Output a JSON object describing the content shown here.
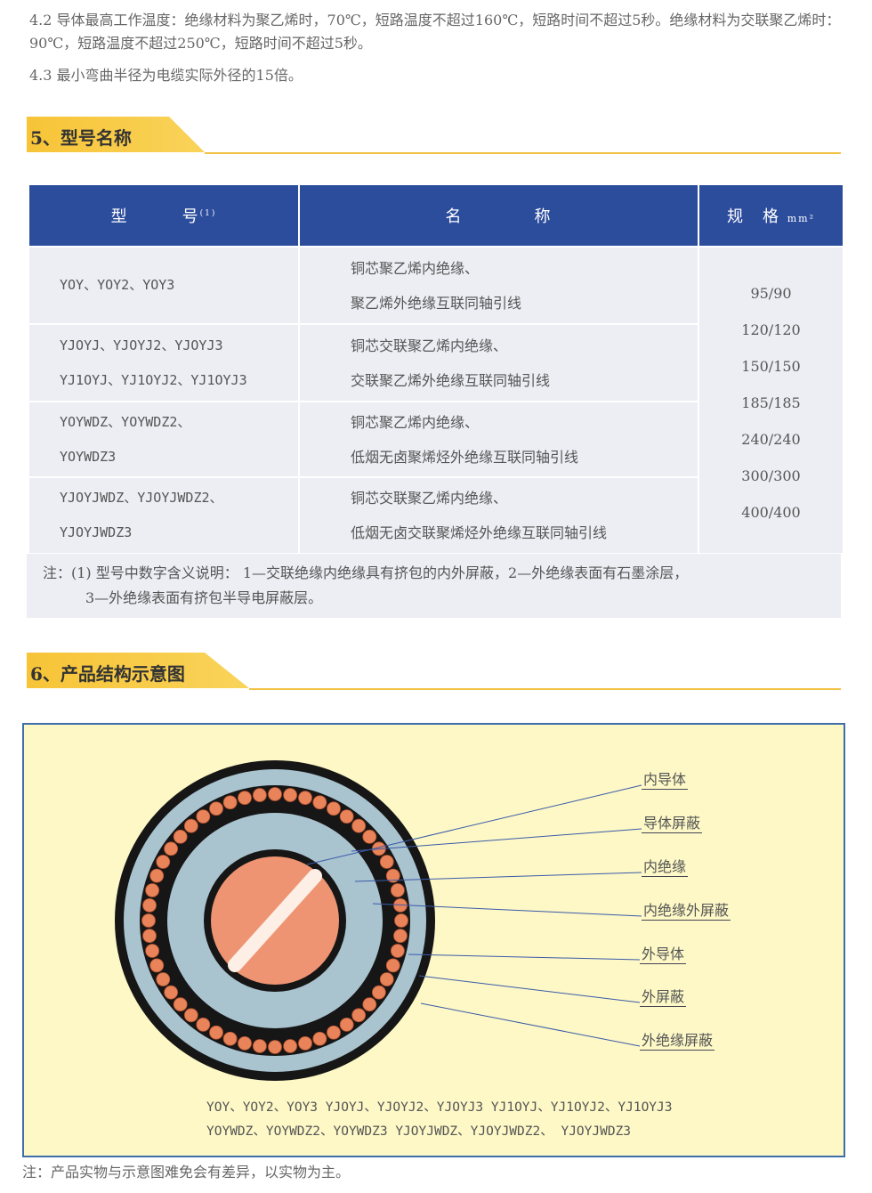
{
  "para_4_2": "4.2 导体最高工作温度：绝缘材料为聚乙烯时，70℃，短路温度不超过160℃，短路时间不超过5秒。绝缘材料为交联聚乙烯时：90℃，短路温度不超过250℃，短路时间不超过5秒。",
  "para_4_3": "4.3 最小弯曲半径为电缆实际外径的15倍。",
  "section5": {
    "title": "5、型号名称"
  },
  "table": {
    "headers": {
      "model": "型　　　号",
      "model_sup": "(1)",
      "name": "名　　　　称",
      "spec": "规　格",
      "spec_unit": "mm²"
    },
    "rows": [
      {
        "models": [
          "YOY、YOY2、YOY3"
        ],
        "names": [
          "铜芯聚乙烯内绝缘、",
          "聚乙烯外绝缘互联同轴引线"
        ]
      },
      {
        "models": [
          "YJOYJ、YJOYJ2、YJOYJ3",
          "YJ1OYJ、YJ1OYJ2、YJ1OYJ3"
        ],
        "names": [
          "铜芯交联聚乙烯内绝缘、",
          "交联聚乙烯外绝缘互联同轴引线"
        ]
      },
      {
        "models": [
          "YOYWDZ、YOYWDZ2、",
          "YOYWDZ3"
        ],
        "names": [
          "铜芯聚乙烯内绝缘、",
          "低烟无卤聚烯烃外绝缘互联同轴引线"
        ]
      },
      {
        "models": [
          "YJOYJWDZ、YJOYJWDZ2、",
          "YJOYJWDZ3"
        ],
        "names": [
          "铜芯交联聚乙烯内绝缘、",
          "低烟无卤交联聚烯烃外绝缘互联同轴引线"
        ]
      }
    ],
    "specs": [
      "95/90",
      "120/120",
      "150/150",
      "185/185",
      "240/240",
      "300/300",
      "400/400"
    ],
    "note_line1": "注：(1) 型号中数字含义说明： 1—交联绝缘内绝缘具有挤包的内外屏蔽，2—外绝缘表面有石墨涂层，",
    "note_line2": "3—外绝缘表面有挤包半导电屏蔽层。"
  },
  "section6": {
    "title": "6、产品结构示意图"
  },
  "diagram": {
    "labels": [
      "内导体",
      "导体屏蔽",
      "内绝缘",
      "内绝缘外屏蔽",
      "外导体",
      "外屏蔽",
      "外绝缘屏蔽"
    ],
    "models_line1": "YOY、YOY2、YOY3 YJOYJ、YJOYJ2、YJOYJ3 YJ1OYJ、YJ1OYJ2、YJ1OYJ3",
    "models_line2": "YOYWDZ、YOYWDZ2、YOYWDZ3 YJOYJWDZ、YJOYJWDZ2、 YJOYJWDZ3",
    "colors": {
      "copper": "#e8835a",
      "insulation": "#a9c3cf",
      "black": "#161616",
      "background": "#fdf8c6"
    }
  },
  "footer_note": "注：产品实物与示意图难免会有差异，以实物为主。"
}
